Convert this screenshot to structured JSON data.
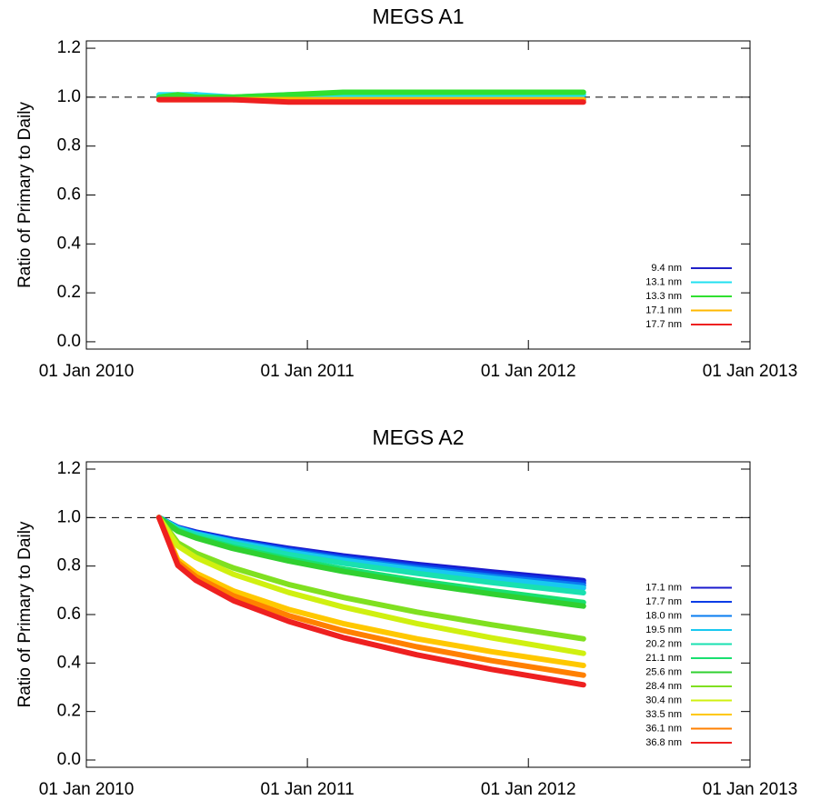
{
  "chart_data": [
    {
      "type": "line",
      "title": "MEGS A1",
      "y_label": "Ratio of Primary to Daily",
      "x": [
        "2010-05-01",
        "2010-06-01",
        "2010-07-01",
        "2010-09-01",
        "2010-12-01",
        "2011-03-01",
        "2011-07-01",
        "2011-11-01",
        "2012-04-01"
      ],
      "series": [
        {
          "name": "9.4 nm",
          "color": "#2020c8",
          "values": [
            1.0,
            1.0,
            1.01,
            0.99,
            1.0,
            1.0,
            1.01,
            1.0,
            0.99
          ]
        },
        {
          "name": "13.1 nm",
          "color": "#20e0f0",
          "values": [
            1.01,
            1.01,
            1.01,
            1.0,
            1.01,
            1.01,
            1.01,
            1.01,
            1.01
          ]
        },
        {
          "name": "13.3 nm",
          "color": "#30e030",
          "values": [
            1.0,
            1.01,
            1.0,
            1.0,
            1.01,
            1.02,
            1.02,
            1.02,
            1.02
          ]
        },
        {
          "name": "17.1 nm",
          "color": "#ffb800",
          "values": [
            0.99,
            0.99,
            0.99,
            0.99,
            0.99,
            0.99,
            0.99,
            0.99,
            0.99
          ]
        },
        {
          "name": "17.7 nm",
          "color": "#ee2020",
          "values": [
            0.99,
            0.99,
            0.99,
            0.99,
            0.98,
            0.98,
            0.98,
            0.98,
            0.98
          ]
        }
      ],
      "xlim": [
        "2010-01-01",
        "2013-01-01"
      ],
      "xticks": [
        {
          "value": "2010-01-01",
          "label": "01 Jan 2010"
        },
        {
          "value": "2011-01-01",
          "label": "01 Jan 2011"
        },
        {
          "value": "2012-01-01",
          "label": "01 Jan 2012"
        },
        {
          "value": "2013-01-01",
          "label": "01 Jan 2013"
        }
      ],
      "ylim": [
        -0.03,
        1.23
      ],
      "yticks": [
        {
          "value": 0,
          "label": "0.0"
        },
        0.2,
        0.4,
        0.6,
        0.8,
        {
          "value": 1,
          "label": "1.0"
        },
        1.2
      ],
      "reference_line": 1,
      "legend": "lower right"
    },
    {
      "type": "line",
      "title": "MEGS A2",
      "y_label": "Ratio of Primary to Daily",
      "x": [
        "2010-05-01",
        "2010-06-01",
        "2010-07-01",
        "2010-09-01",
        "2010-12-01",
        "2011-03-01",
        "2011-07-01",
        "2011-11-01",
        "2012-04-01"
      ],
      "series": [
        {
          "name": "17.1 nm",
          "color": "#1a1acd",
          "values": [
            1,
            0.96,
            0.94,
            0.909,
            0.873,
            0.842,
            0.807,
            0.776,
            0.74
          ]
        },
        {
          "name": "17.7 nm",
          "color": "#0a3ce6",
          "values": [
            1,
            0.959,
            0.938,
            0.906,
            0.868,
            0.836,
            0.799,
            0.767,
            0.73
          ]
        },
        {
          "name": "18.0 nm",
          "color": "#0a7cf0",
          "values": [
            1,
            0.957,
            0.935,
            0.902,
            0.863,
            0.83,
            0.792,
            0.758,
            0.72
          ]
        },
        {
          "name": "19.5 nm",
          "color": "#18c8f0",
          "values": [
            1,
            0.956,
            0.933,
            0.899,
            0.858,
            0.824,
            0.785,
            0.75,
            0.71
          ]
        },
        {
          "name": "20.2 nm",
          "color": "#19e0b0",
          "values": [
            1,
            0.953,
            0.928,
            0.892,
            0.848,
            0.812,
            0.77,
            0.732,
            0.69
          ]
        },
        {
          "name": "21.1 nm",
          "color": "#19e070",
          "values": [
            1,
            0.946,
            0.919,
            0.878,
            0.829,
            0.788,
            0.74,
            0.698,
            0.65
          ]
        },
        {
          "name": "25.6 nm",
          "color": "#30d030",
          "values": [
            1,
            0.944,
            0.916,
            0.872,
            0.821,
            0.778,
            0.729,
            0.685,
            0.635
          ]
        },
        {
          "name": "28.4 nm",
          "color": "#80e020",
          "values": [
            1,
            0.896,
            0.853,
            0.792,
            0.724,
            0.671,
            0.61,
            0.558,
            0.5
          ]
        },
        {
          "name": "30.4 nm",
          "color": "#d0f010",
          "values": [
            1,
            0.883,
            0.835,
            0.766,
            0.691,
            0.631,
            0.563,
            0.504,
            0.44
          ]
        },
        {
          "name": "33.5 nm",
          "color": "#ffc800",
          "values": [
            1,
            0.826,
            0.771,
            0.697,
            0.621,
            0.563,
            0.5,
            0.447,
            0.39
          ]
        },
        {
          "name": "36.1 nm",
          "color": "#ff8000",
          "values": [
            1,
            0.815,
            0.756,
            0.677,
            0.596,
            0.534,
            0.467,
            0.41,
            0.35
          ]
        },
        {
          "name": "36.8 nm",
          "color": "#ee2020",
          "values": [
            1,
            0.803,
            0.741,
            0.657,
            0.572,
            0.505,
            0.434,
            0.374,
            0.31
          ]
        }
      ],
      "xlim": [
        "2010-01-01",
        "2013-01-01"
      ],
      "xticks": [
        {
          "value": "2010-01-01",
          "label": "01 Jan 2010"
        },
        {
          "value": "2011-01-01",
          "label": "01 Jan 2011"
        },
        {
          "value": "2012-01-01",
          "label": "01 Jan 2012"
        },
        {
          "value": "2013-01-01",
          "label": "01 Jan 2013"
        }
      ],
      "ylim": [
        -0.03,
        1.23
      ],
      "yticks": [
        {
          "value": 0,
          "label": "0.0"
        },
        0.2,
        0.4,
        0.6,
        0.8,
        {
          "value": 1,
          "label": "1.0"
        },
        1.2
      ],
      "reference_line": 1,
      "legend": "lower right"
    }
  ]
}
